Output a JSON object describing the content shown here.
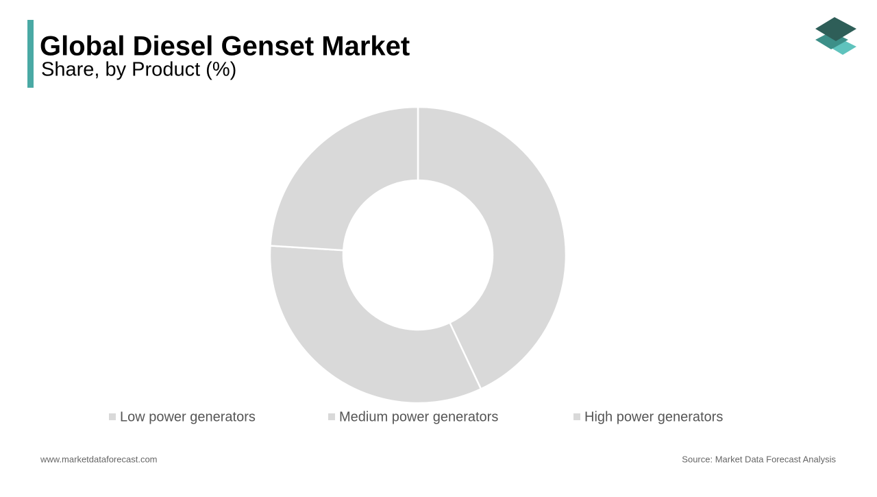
{
  "chart_data": {
    "type": "donut",
    "title": "Global Diesel Genset Market",
    "subtitle": "Share, by Product  (%)",
    "categories": [
      "Low power generators",
      "Medium power generators",
      "High power generators"
    ],
    "values": [
      43,
      33,
      24
    ],
    "colors": [
      "#d9d9d9",
      "#d9d9d9",
      "#d9d9d9"
    ],
    "legend": "bottom"
  },
  "footer": {
    "website": "www.marketdataforecast.com",
    "source": "Source: Market Data Forecast Analysis"
  }
}
